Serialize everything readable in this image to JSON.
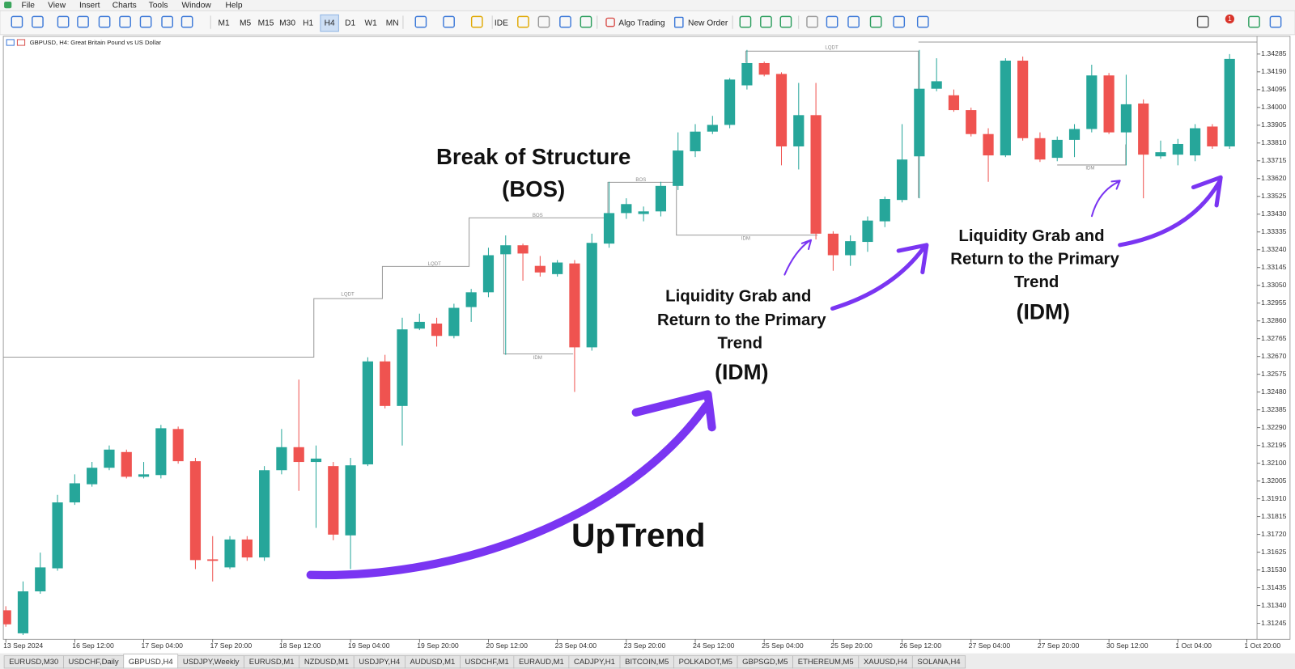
{
  "menu": [
    "File",
    "View",
    "Insert",
    "Charts",
    "Tools",
    "Window",
    "Help"
  ],
  "toolbar": {
    "timeframes": [
      "M1",
      "M5",
      "M15",
      "M30",
      "H1",
      "H4",
      "D1",
      "W1",
      "MN"
    ],
    "active_timeframe": "H4",
    "ide": "IDE",
    "algo_trading": "Algo Trading",
    "new_order": "New Order",
    "badge": "1"
  },
  "chart_data": {
    "type": "candlestick",
    "title": "GBPUSD, H4:  Great Britain Pound vs US Dollar",
    "categories": [
      "13 Sep 2024",
      null,
      null,
      null,
      "16 Sep 12:00",
      null,
      null,
      null,
      "17 Sep 04:00",
      null,
      null,
      null,
      "17 Sep 20:00",
      null,
      null,
      null,
      "18 Sep 12:00",
      null,
      null,
      null,
      "19 Sep 04:00",
      null,
      null,
      null,
      "19 Sep 20:00",
      null,
      null,
      null,
      "20 Sep 12:00",
      null,
      null,
      null,
      "23 Sep 04:00",
      null,
      null,
      null,
      "23 Sep 20:00",
      null,
      null,
      null,
      "24 Sep 12:00",
      null,
      null,
      null,
      "25 Sep 04:00",
      null,
      null,
      null,
      "25 Sep 20:00",
      null,
      null,
      null,
      "26 Sep 12:00",
      null,
      null,
      null,
      "27 Sep 04:00",
      null,
      null,
      null,
      "27 Sep 20:00",
      null,
      null,
      null,
      "30 Sep 12:00",
      null,
      null,
      null,
      "1 Oct 04:00",
      null,
      null,
      null,
      "1 Oct 20:00"
    ],
    "open": [
      1.31315,
      1.31192,
      1.31416,
      1.31539,
      1.31891,
      1.31988,
      1.32076,
      1.3216,
      1.32028,
      1.32037,
      1.32283,
      1.32111,
      1.31587,
      1.31544,
      1.31693,
      1.31597,
      1.32063,
      1.32186,
      1.32107,
      1.32085,
      1.31715,
      1.32094,
      1.32644,
      1.32406,
      1.32819,
      1.32846,
      1.3278,
      1.32934,
      1.33013,
      1.33216,
      1.33264,
      1.33154,
      1.3311,
      1.33167,
      1.32719,
      1.33273,
      1.33436,
      1.33431,
      1.33445,
      1.33581,
      1.33766,
      1.33871,
      1.33907,
      1.34118,
      1.34237,
      1.34179,
      1.33792,
      1.33959,
      1.33326,
      1.33211,
      1.33282,
      1.33392,
      1.33506,
      1.33739,
      1.341,
      1.34065,
      1.33986,
      1.33858,
      1.33744,
      1.3425,
      1.33836,
      1.33731,
      1.33827,
      1.33885,
      1.34171,
      1.33867,
      1.34021,
      1.33739,
      1.33748,
      1.33744,
      1.33898,
      1.33792,
      null
    ],
    "high": [
      1.31337,
      1.31469,
      1.31623,
      1.31931,
      1.32041,
      1.32107,
      1.32195,
      1.32173,
      1.32107,
      1.32305,
      1.32296,
      1.32129,
      1.31711,
      1.31711,
      1.31711,
      1.32085,
      1.32283,
      1.32547,
      1.32195,
      1.32107,
      1.32129,
      1.32666,
      1.32679,
      1.32877,
      1.32899,
      1.32877,
      1.32952,
      1.33031,
      1.33251,
      1.33317,
      1.33273,
      1.33207,
      1.33185,
      1.33185,
      1.33326,
      1.33603,
      1.33515,
      1.33471,
      1.33603,
      1.33867,
      1.33911,
      1.33955,
      1.34157,
      1.34307,
      1.34245,
      1.34188,
      1.34131,
      1.34131,
      1.33339,
      1.33317,
      1.33418,
      1.33524,
      1.33911,
      1.34307,
      1.34263,
      1.34096,
      1.33999,
      1.33889,
      1.34263,
      1.34272,
      1.33867,
      1.33845,
      1.33911,
      1.34228,
      1.34184,
      1.34175,
      1.34043,
      1.33823,
      1.33832,
      1.33911,
      1.33911,
      1.34285,
      null
    ],
    "low": [
      1.31227,
      1.31183,
      1.31403,
      1.31526,
      1.31878,
      1.31975,
      1.32063,
      1.32019,
      1.32019,
      1.32019,
      1.32098,
      1.31535,
      1.31469,
      1.31535,
      1.31579,
      1.31579,
      1.32041,
      1.31953,
      1.31755,
      1.31689,
      1.31535,
      1.32085,
      1.32393,
      1.32195,
      1.32811,
      1.32723,
      1.32767,
      1.32855,
      1.32987,
      1.32679,
      1.33075,
      1.33097,
      1.33097,
      1.32481,
      1.32701,
      1.33251,
      1.33405,
      1.33392,
      1.33418,
      1.33559,
      1.33735,
      1.33858,
      1.33889,
      1.34096,
      1.34166,
      1.33691,
      1.33669,
      1.33295,
      1.33128,
      1.33154,
      1.33229,
      1.33361,
      1.33493,
      1.33515,
      1.34087,
      1.33977,
      1.33845,
      1.33603,
      1.33735,
      1.33823,
      1.33709,
      1.33713,
      1.33735,
      1.33867,
      1.33858,
      1.33691,
      1.33515,
      1.33726,
      1.33691,
      1.33713,
      1.33779,
      1.33779,
      null
    ],
    "close": [
      1.3124,
      1.31416,
      1.31544,
      1.31891,
      1.31993,
      1.32076,
      1.32173,
      1.32028,
      1.32041,
      1.32287,
      1.32111,
      1.31583,
      1.31579,
      1.31693,
      1.31597,
      1.32063,
      1.32186,
      1.32107,
      1.32125,
      1.31719,
      1.32089,
      1.32644,
      1.32406,
      1.32815,
      1.32855,
      1.3278,
      1.3293,
      1.33013,
      1.33211,
      1.33264,
      1.3322,
      1.33119,
      1.33172,
      1.32719,
      1.33277,
      1.33436,
      1.33484,
      1.33445,
      1.33581,
      1.3377,
      1.33871,
      1.33907,
      1.34149,
      1.34237,
      1.34175,
      1.33792,
      1.33959,
      1.33326,
      1.33211,
      1.33286,
      1.33396,
      1.33511,
      1.33722,
      1.341,
      1.3414,
      1.33986,
      1.33858,
      1.33744,
      1.3425,
      1.33836,
      1.33722,
      1.33827,
      1.33885,
      1.34171,
      1.33867,
      1.34017,
      1.33748,
      1.33761,
      1.33805,
      1.33889,
      1.33792,
      1.34259,
      null
    ],
    "up_color": "#26a69a",
    "down_color": "#ef5350",
    "ylim": [
      1.3116,
      1.3438
    ],
    "yticks": [
      1.34285,
      {
        "value": 1.3419,
        "label": "1.34190"
      },
      1.34095,
      {
        "value": 1.34,
        "label": "1.34000"
      },
      1.33905,
      {
        "value": 1.3381,
        "label": "1.33810"
      },
      1.33715,
      {
        "value": 1.3362,
        "label": "1.33620"
      },
      1.33525,
      {
        "value": 1.3343,
        "label": "1.33430"
      },
      1.33335,
      {
        "value": 1.3324,
        "label": "1.33240"
      },
      1.33145,
      {
        "value": 1.3305,
        "label": "1.33050"
      },
      1.32955,
      {
        "value": 1.3286,
        "label": "1.32860"
      },
      1.32765,
      {
        "value": 1.3267,
        "label": "1.32670"
      },
      1.32575,
      {
        "value": 1.3248,
        "label": "1.32480"
      },
      1.32385,
      {
        "value": 1.3229,
        "label": "1.32290"
      },
      1.32195,
      {
        "value": 1.321,
        "label": "1.32100"
      },
      1.32005,
      {
        "value": 1.3191,
        "label": "1.31910"
      },
      1.31815,
      {
        "value": 1.3172,
        "label": "1.31720"
      },
      1.31625,
      {
        "value": 1.3153,
        "label": "1.31530"
      },
      1.31435,
      {
        "value": 1.3134,
        "label": "1.31340"
      },
      1.31245
    ],
    "grid": false,
    "structure_labels": [
      "LQDT",
      "LQDT",
      "BOS",
      "BOS",
      "IDM",
      "IDM",
      "LQDT",
      "IDM"
    ],
    "annotations": [
      "Break of Structure",
      "(BOS)",
      "UpTrend",
      "Liquidity Grab and",
      "Return to the Primary",
      "Trend",
      "(IDM)",
      "Liquidity Grab and",
      "Return to the Primary",
      "Trend",
      "(IDM)"
    ]
  },
  "tabs": [
    "EURUSD,M30",
    "USDCHF,Daily",
    "GBPUSD,H4",
    "USDJPY,Weekly",
    "EURUSD,M1",
    "NZDUSD,M1",
    "USDJPY,H4",
    "AUDUSD,M1",
    "USDCHF,M1",
    "EURAUD,M1",
    "CADJPY,H1",
    "BITCOIN,M5",
    "POLKADOT,M5",
    "GBPSGD,M5",
    "ETHEREUM,M5",
    "XAUUSD,H4",
    "SOLANA,H4"
  ],
  "active_tab": "GBPUSD,H4"
}
